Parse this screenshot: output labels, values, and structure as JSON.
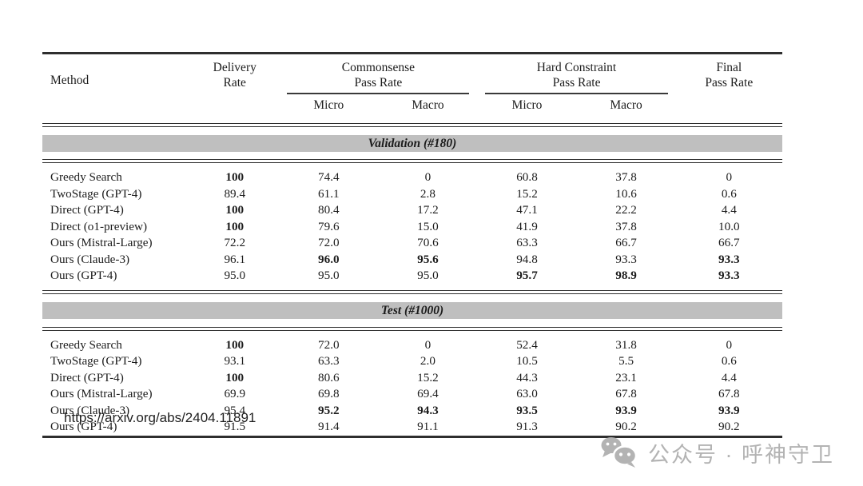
{
  "table": {
    "header": {
      "method": "Method",
      "delivery": "Delivery\nRate",
      "commonsense": "Commonsense\nPass Rate",
      "hard_constraint": "Hard Constraint\nPass Rate",
      "final": "Final\nPass Rate",
      "subcolumns": [
        "Micro",
        "Macro",
        "Micro",
        "Macro"
      ]
    },
    "sections": [
      {
        "title": "Validation (#180)",
        "rows": [
          {
            "method": "Greedy Search",
            "values": [
              "100",
              "74.4",
              "0",
              "60.8",
              "37.8",
              "0"
            ],
            "bold": [
              0
            ]
          },
          {
            "method": "TwoStage (GPT-4)",
            "values": [
              "89.4",
              "61.1",
              "2.8",
              "15.2",
              "10.6",
              "0.6"
            ],
            "bold": []
          },
          {
            "method": "Direct (GPT-4)",
            "values": [
              "100",
              "80.4",
              "17.2",
              "47.1",
              "22.2",
              "4.4"
            ],
            "bold": [
              0
            ]
          },
          {
            "method": "Direct (o1-preview)",
            "values": [
              "100",
              "79.6",
              "15.0",
              "41.9",
              "37.8",
              "10.0"
            ],
            "bold": [
              0
            ]
          },
          {
            "method": "Ours (Mistral-Large)",
            "values": [
              "72.2",
              "72.0",
              "70.6",
              "63.3",
              "66.7",
              "66.7"
            ],
            "bold": []
          },
          {
            "method": "Ours (Claude-3)",
            "values": [
              "96.1",
              "96.0",
              "95.6",
              "94.8",
              "93.3",
              "93.3"
            ],
            "bold": [
              1,
              2,
              5
            ]
          },
          {
            "method": "Ours (GPT-4)",
            "values": [
              "95.0",
              "95.0",
              "95.0",
              "95.7",
              "98.9",
              "93.3"
            ],
            "bold": [
              3,
              4,
              5
            ]
          }
        ]
      },
      {
        "title": "Test (#1000)",
        "rows": [
          {
            "method": "Greedy Search",
            "values": [
              "100",
              "72.0",
              "0",
              "52.4",
              "31.8",
              "0"
            ],
            "bold": [
              0
            ]
          },
          {
            "method": "TwoStage (GPT-4)",
            "values": [
              "93.1",
              "63.3",
              "2.0",
              "10.5",
              "5.5",
              "0.6"
            ],
            "bold": []
          },
          {
            "method": "Direct (GPT-4)",
            "values": [
              "100",
              "80.6",
              "15.2",
              "44.3",
              "23.1",
              "4.4"
            ],
            "bold": [
              0
            ]
          },
          {
            "method": "Ours (Mistral-Large)",
            "values": [
              "69.9",
              "69.8",
              "69.4",
              "63.0",
              "67.8",
              "67.8"
            ],
            "bold": []
          },
          {
            "method": "Ours (Claude-3)",
            "values": [
              "95.4",
              "95.2",
              "94.3",
              "93.5",
              "93.9",
              "93.9"
            ],
            "bold": [
              1,
              2,
              3,
              4,
              5
            ]
          },
          {
            "method": "Ours (GPT-4)",
            "values": [
              "91.5",
              "91.4",
              "91.1",
              "91.3",
              "90.2",
              "90.2"
            ],
            "bold": []
          }
        ]
      }
    ]
  },
  "footer": {
    "url": "https://arxiv.org/abs/2404.11891"
  },
  "watermark": {
    "icon": "wechat-icon",
    "text": "公众号 · 呼神守卫",
    "color": "#b3b3b3"
  },
  "colors": {
    "background": "#ffffff",
    "text": "#1c1c1c",
    "rule": "#2e2e2e",
    "section_band_bg": "#bfbfbf",
    "watermark_gray": "#b3b3b3"
  }
}
